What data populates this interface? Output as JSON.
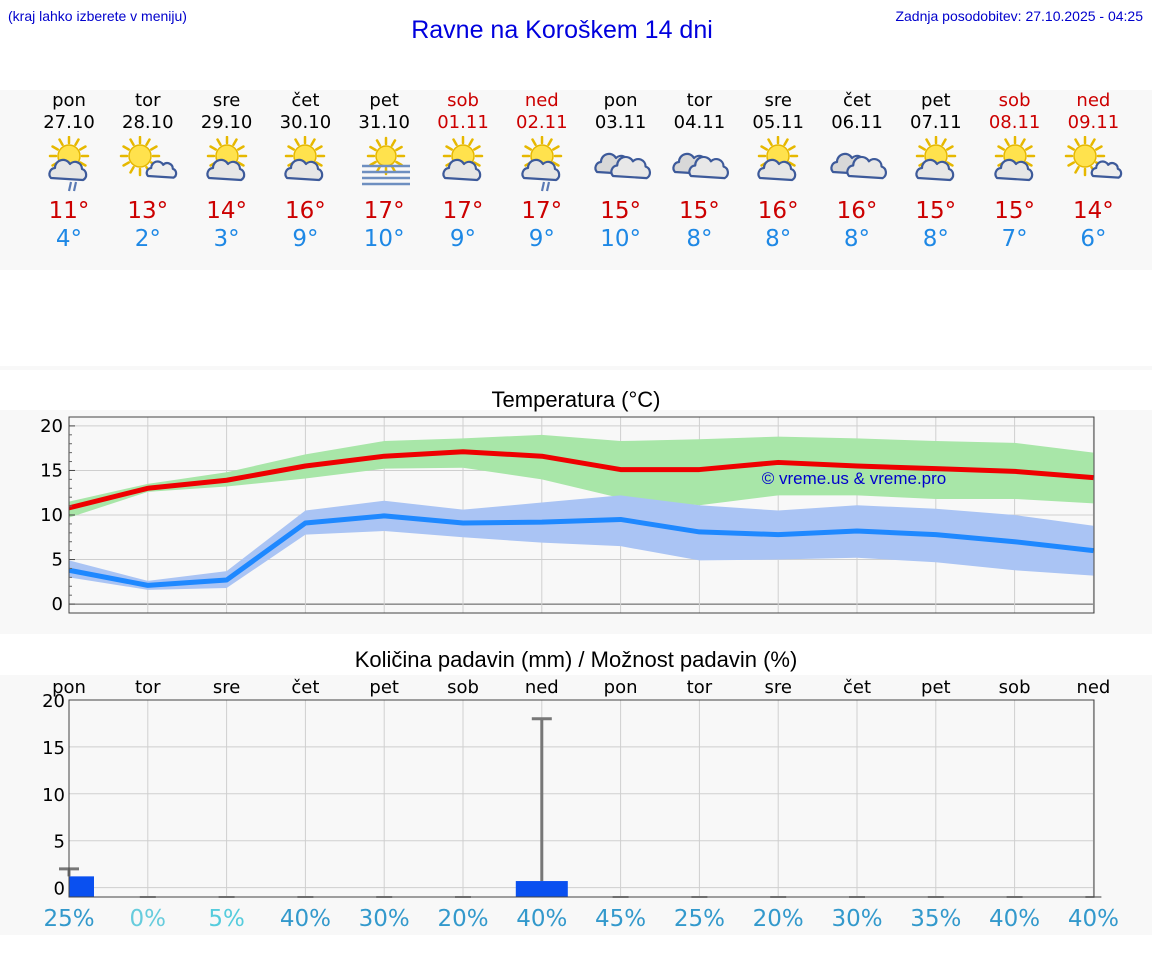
{
  "header": {
    "hint": "(kraj lahko izberete v meniju)",
    "title": "Ravne na Koroškem 14 dni",
    "updated": "Zadnja posodobitev: 27.10.2025 - 04:25"
  },
  "colors": {
    "max_temp": "#ee0000",
    "min_temp": "#1e88ff",
    "max_band": "#a8e6a8",
    "min_band": "#aac4f4",
    "precip_bar": "#0a50f0",
    "weekend": "#cc0000",
    "watermark": "#0000cc"
  },
  "days": [
    {
      "name": "pon",
      "date": "27.10",
      "max": "11°",
      "min": "4°",
      "weekend": false,
      "icon": "sun-cloud-rain-icon"
    },
    {
      "name": "tor",
      "date": "28.10",
      "max": "13°",
      "min": "2°",
      "weekend": false,
      "icon": "sun-small-cloud-icon"
    },
    {
      "name": "sre",
      "date": "29.10",
      "max": "14°",
      "min": "3°",
      "weekend": false,
      "icon": "sun-cloud-icon"
    },
    {
      "name": "čet",
      "date": "30.10",
      "max": "16°",
      "min": "9°",
      "weekend": false,
      "icon": "sun-cloud-icon"
    },
    {
      "name": "pet",
      "date": "31.10",
      "max": "17°",
      "min": "10°",
      "weekend": false,
      "icon": "sun-fog-icon"
    },
    {
      "name": "sob",
      "date": "01.11",
      "max": "17°",
      "min": "9°",
      "weekend": true,
      "icon": "sun-cloud-icon"
    },
    {
      "name": "ned",
      "date": "02.11",
      "max": "17°",
      "min": "9°",
      "weekend": true,
      "icon": "sun-cloud-rain-icon"
    },
    {
      "name": "pon",
      "date": "03.11",
      "max": "15°",
      "min": "10°",
      "weekend": false,
      "icon": "clouds-icon"
    },
    {
      "name": "tor",
      "date": "04.11",
      "max": "15°",
      "min": "8°",
      "weekend": false,
      "icon": "clouds-icon"
    },
    {
      "name": "sre",
      "date": "05.11",
      "max": "16°",
      "min": "8°",
      "weekend": false,
      "icon": "sun-cloud-icon"
    },
    {
      "name": "čet",
      "date": "06.11",
      "max": "16°",
      "min": "8°",
      "weekend": false,
      "icon": "clouds-icon"
    },
    {
      "name": "pet",
      "date": "07.11",
      "max": "15°",
      "min": "8°",
      "weekend": false,
      "icon": "sun-cloud-icon"
    },
    {
      "name": "sob",
      "date": "08.11",
      "max": "15°",
      "min": "7°",
      "weekend": true,
      "icon": "sun-cloud-icon"
    },
    {
      "name": "ned",
      "date": "09.11",
      "max": "14°",
      "min": "6°",
      "weekend": true,
      "icon": "sun-small-cloud-icon"
    }
  ],
  "chart_data": [
    {
      "type": "line",
      "title": "Temperatura (°C)",
      "ylim": [
        -1,
        21
      ],
      "yticks": [
        "0",
        "5",
        "10",
        "15",
        "20"
      ],
      "grid": true,
      "watermark": "© vreme.us & vreme.pro",
      "x": [
        0,
        1,
        2,
        3,
        4,
        5,
        6,
        7,
        8,
        9,
        10,
        11,
        12,
        13
      ],
      "series": [
        {
          "values": [
            10.8,
            13.0,
            13.9,
            15.5,
            16.6,
            17.1,
            16.6,
            15.1,
            15.1,
            15.9,
            15.5,
            15.2,
            14.9,
            14.2
          ]
        },
        {
          "values": [
            3.8,
            2.1,
            2.7,
            9.1,
            9.9,
            9.1,
            9.2,
            9.5,
            8.1,
            7.8,
            8.2,
            7.8,
            7.0,
            6.0
          ]
        }
      ],
      "bands": [
        {
          "upper": [
            11.5,
            13.5,
            14.8,
            16.8,
            18.3,
            18.6,
            19.0,
            18.3,
            18.5,
            18.8,
            18.6,
            18.3,
            18.1,
            17.0
          ],
          "lower": [
            9.7,
            12.6,
            13.2,
            14.1,
            15.2,
            15.3,
            14.0,
            11.9,
            11.1,
            12.2,
            12.2,
            11.8,
            11.8,
            11.3
          ]
        },
        {
          "upper": [
            4.9,
            2.6,
            3.7,
            10.5,
            11.6,
            10.6,
            11.4,
            12.2,
            11.1,
            10.5,
            11.1,
            10.7,
            10.0,
            8.8
          ],
          "lower": [
            3.0,
            1.6,
            1.8,
            7.8,
            8.2,
            7.5,
            6.9,
            6.5,
            4.9,
            5.0,
            5.2,
            4.7,
            3.8,
            3.2
          ]
        }
      ]
    },
    {
      "type": "bar",
      "title": "Količina padavin (mm) / Možnost padavin (%)",
      "ylim": [
        -1,
        20
      ],
      "yticks": [
        "0",
        "5",
        "10",
        "15",
        "20"
      ],
      "grid": true,
      "categories": [
        "pon",
        "tor",
        "sre",
        "čet",
        "pet",
        "sob",
        "ned",
        "pon",
        "tor",
        "sre",
        "čet",
        "pet",
        "sob",
        "ned"
      ],
      "values": [
        1.2,
        0,
        0,
        0,
        0,
        0,
        0.7,
        0,
        0,
        0,
        0,
        0,
        0,
        0
      ],
      "max_values": [
        2.0,
        0,
        0,
        0,
        0,
        0,
        18.0,
        0,
        0,
        0,
        0,
        0,
        0,
        0
      ],
      "probability": [
        "25%",
        "0%",
        "5%",
        "40%",
        "30%",
        "20%",
        "40%",
        "45%",
        "25%",
        "20%",
        "30%",
        "35%",
        "40%",
        "40%"
      ]
    }
  ]
}
